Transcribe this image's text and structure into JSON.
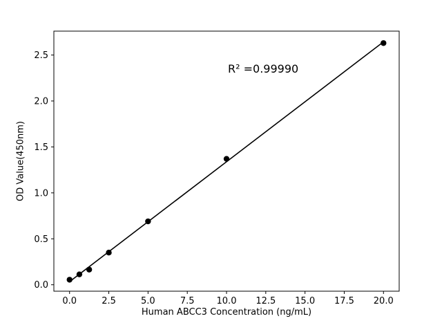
{
  "figure": {
    "background": "#ffffff"
  },
  "chart_data": {
    "type": "scatter",
    "title": "",
    "xlabel": "Human ABCC3 Concentration (ng/mL)",
    "ylabel": "OD Value(450nm)",
    "x": [
      0,
      0.625,
      1.25,
      2.5,
      5,
      10,
      20
    ],
    "y": [
      0.055,
      0.113,
      0.165,
      0.35,
      0.69,
      1.37,
      2.63
    ],
    "xtick_labels": [
      "0.0",
      "2.5",
      "5.0",
      "7.5",
      "10.0",
      "12.5",
      "15.0",
      "17.5",
      "20.0"
    ],
    "xticks": [
      0,
      2.5,
      5,
      7.5,
      10,
      12.5,
      15,
      17.5,
      20
    ],
    "ytick_labels": [
      "0.0",
      "0.5",
      "1.0",
      "1.5",
      "2.0",
      "2.5"
    ],
    "yticks": [
      0,
      0.5,
      1.0,
      1.5,
      2.0,
      2.5
    ],
    "xlim": [
      -1,
      21
    ],
    "ylim": [
      -0.07,
      2.76
    ],
    "grid": false,
    "legend": false,
    "fit_line": true,
    "annotation": "R² =0.99990",
    "marker_color": "#000000",
    "line_color": "#000000",
    "axis_color": "#000000"
  }
}
